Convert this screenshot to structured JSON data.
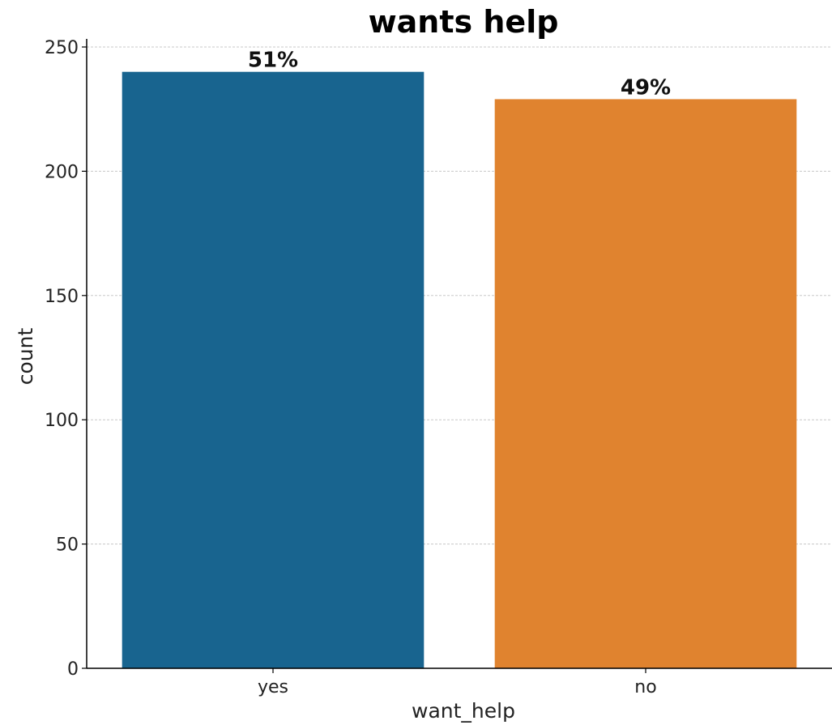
{
  "chart_data": {
    "type": "bar",
    "title": "wants help",
    "xlabel": "want_help",
    "ylabel": "count",
    "categories": [
      "yes",
      "no"
    ],
    "values": [
      240,
      229
    ],
    "data_labels": [
      "51%",
      "49%"
    ],
    "colors": [
      "#18648f",
      "#e0832f"
    ],
    "ylim": [
      0,
      250
    ],
    "yticks": [
      0,
      50,
      100,
      150,
      200,
      250
    ],
    "grid": "horizontal dashed"
  }
}
